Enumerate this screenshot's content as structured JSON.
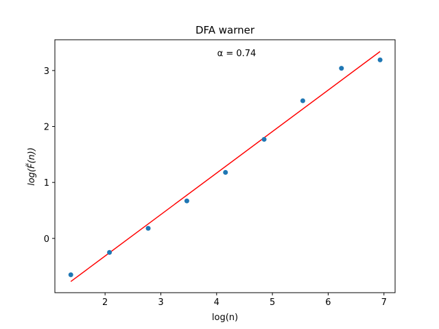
{
  "chart_data": {
    "type": "scatter",
    "title": "DFA warner",
    "xlabel": "log(n)",
    "ylabel": "log(F̃(n))",
    "annotation": "α = 0.74",
    "xlim": [
      1.1,
      7.2
    ],
    "ylim": [
      -0.97,
      3.55
    ],
    "xticks": [
      2,
      3,
      4,
      5,
      6,
      7
    ],
    "yticks": [
      0,
      1,
      2,
      3
    ],
    "grid": false,
    "series": [
      {
        "type": "scatter",
        "color": "#1f77b4",
        "x": [
          1.386,
          2.079,
          2.773,
          3.466,
          4.159,
          4.852,
          5.545,
          6.238,
          6.931
        ],
        "y": [
          -0.65,
          -0.25,
          0.18,
          0.67,
          1.18,
          1.77,
          2.46,
          3.04,
          3.19
        ]
      },
      {
        "type": "line",
        "color": "#ff0000",
        "x": [
          1.386,
          6.931
        ],
        "y": [
          -0.77,
          3.34
        ]
      }
    ]
  }
}
